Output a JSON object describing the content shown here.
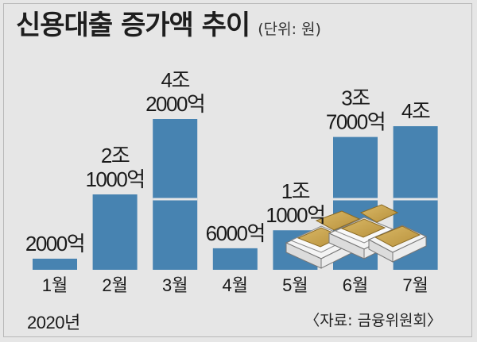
{
  "header": {
    "title": "신용대출 증가액 추이",
    "unit": "(단위: 원)"
  },
  "chart_data": {
    "type": "bar",
    "categories": [
      "1월",
      "2월",
      "3월",
      "4월",
      "5월",
      "6월",
      "7월"
    ],
    "values": [
      2000,
      21000,
      42000,
      6000,
      11000,
      37000,
      40000
    ],
    "value_unit": "억 원",
    "data_labels": [
      [
        "2000억"
      ],
      [
        "2조",
        "1000억"
      ],
      [
        "4조",
        "2000억"
      ],
      [
        "6000억"
      ],
      [
        "1조",
        "1000억"
      ],
      [
        "3조",
        "7000억"
      ],
      [
        "4조"
      ]
    ],
    "year_label": "2020년",
    "source": "〈자료: 금융위원회〉",
    "grid": false,
    "colors": {
      "bar": "#4783b1",
      "background": "#e6e6e6"
    }
  }
}
